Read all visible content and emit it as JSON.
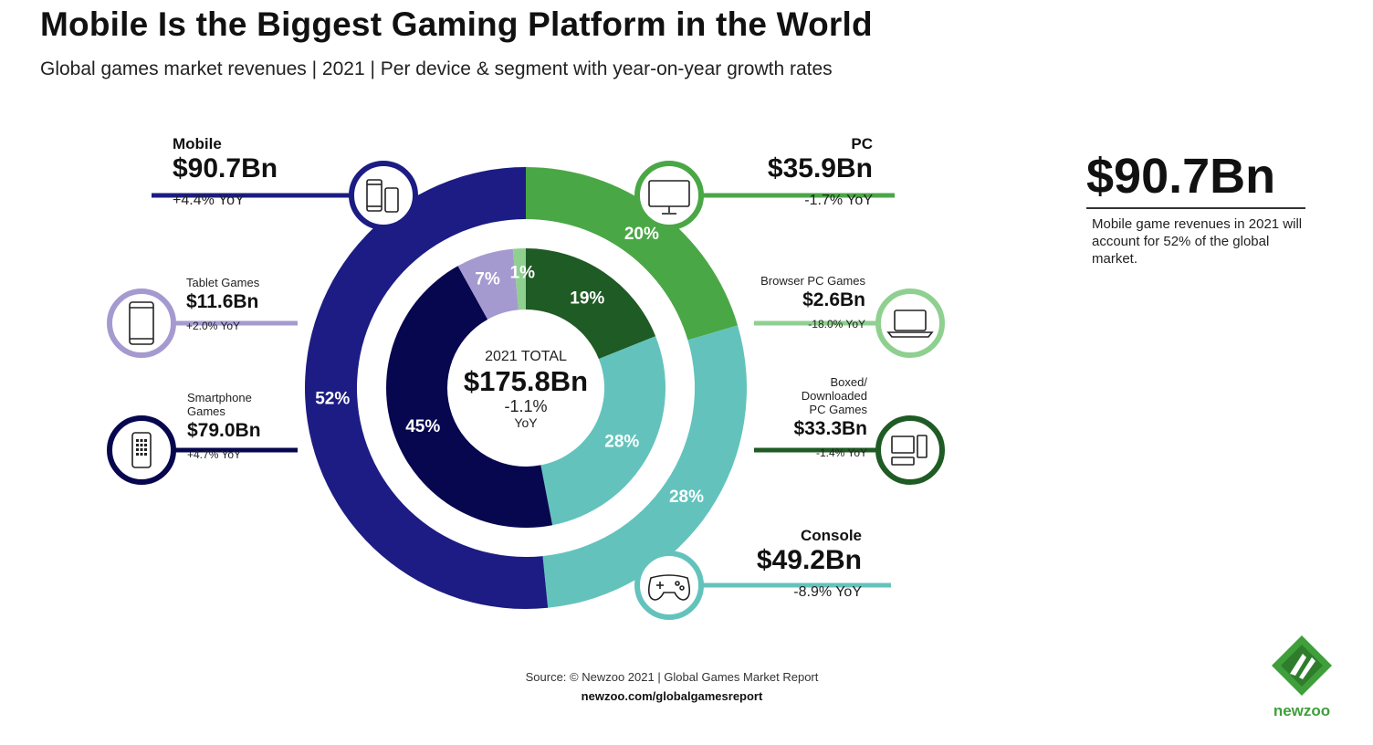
{
  "title": "Mobile Is the Biggest Gaming Platform in the World",
  "subtitle": "Global games market revenues | 2021 | Per device & segment with year-on-year growth rates",
  "colors": {
    "mobile": "#1c1c84",
    "pc": "#4aa746",
    "console": "#63c3bc",
    "tablet": "#a59ad0",
    "smartphone": "#07074f",
    "browser_pc": "#8fd090",
    "boxed_pc": "#1f5b24"
  },
  "chart_data": {
    "type": "pie",
    "center": {
      "label": "2021 TOTAL",
      "value": "$175.8Bn",
      "yoy": "-1.1%",
      "yoy_label": "YoY"
    },
    "outer_ring": [
      {
        "name": "Mobile",
        "value": 90.7,
        "value_label": "$90.7Bn",
        "yoy": "+4.4% YoY",
        "pct": 52,
        "pct_label": "52%",
        "color": "#1c1c84",
        "icon": "phones-icon"
      },
      {
        "name": "Console",
        "value": 49.2,
        "value_label": "$49.2Bn",
        "yoy": "-8.9% YoY",
        "pct": 28,
        "pct_label": "28%",
        "color": "#63c3bc",
        "icon": "gamepad-icon"
      },
      {
        "name": "PC",
        "value": 35.9,
        "value_label": "$35.9Bn",
        "yoy": "-1.7% YoY",
        "pct": 20,
        "pct_label": "20%",
        "color": "#4aa746",
        "icon": "monitor-icon"
      }
    ],
    "inner_ring": [
      {
        "name": "Smartphone Games",
        "value": 79.0,
        "value_label": "$79.0Bn",
        "yoy": "+4.7% YoY",
        "pct": 45,
        "pct_label": "45%",
        "color": "#07074f",
        "icon": "smartphone-icon"
      },
      {
        "name": "Tablet Games",
        "value": 11.6,
        "value_label": "$11.6Bn",
        "yoy": "+2.0% YoY",
        "pct": 7,
        "pct_label": "7%",
        "color": "#a59ad0",
        "icon": "tablet-icon"
      },
      {
        "name": "Browser PC Games",
        "value": 2.6,
        "value_label": "$2.6Bn",
        "yoy": "-18.0% YoY",
        "pct": 1,
        "pct_label": "1%",
        "color": "#8fd090",
        "icon": "laptop-icon"
      },
      {
        "name": "Boxed/ Downloaded PC Games",
        "value": 33.3,
        "value_label": "$33.3Bn",
        "yoy": "-1.4% YoY",
        "pct": 19,
        "pct_label": "19%",
        "color": "#1f5b24",
        "icon": "desktop-pc-icon"
      },
      {
        "name": "Console",
        "value": 49.2,
        "value_label": "",
        "yoy": "",
        "pct": 28,
        "pct_label": "28%",
        "color": "#63c3bc",
        "icon": ""
      }
    ]
  },
  "callouts": {
    "mobile": {
      "name": "Mobile",
      "value": "$90.7Bn",
      "yoy": "+4.4% YoY"
    },
    "tablet": {
      "name": "Tablet Games",
      "value": "$11.6Bn",
      "yoy": "+2.0% YoY"
    },
    "smartphone": {
      "name_line1": "Smartphone",
      "name_line2": "Games",
      "value": "$79.0Bn",
      "yoy": "+4.7% YoY"
    },
    "pc": {
      "name": "PC",
      "value": "$35.9Bn",
      "yoy": "-1.7% YoY"
    },
    "browser": {
      "name": "Browser PC Games",
      "value": "$2.6Bn",
      "yoy": "-18.0% YoY"
    },
    "boxed": {
      "name_line1": "Boxed/",
      "name_line2": "Downloaded",
      "name_line3": "PC Games",
      "value": "$33.3Bn",
      "yoy": "-1.4% YoY"
    },
    "console": {
      "name": "Console",
      "value": "$49.2Bn",
      "yoy": "-8.9% YoY"
    }
  },
  "highlight": {
    "value": "$90.7Bn",
    "description": "Mobile game revenues in 2021 will account for 52% of the global market."
  },
  "source": {
    "text": "Source: © Newzoo 2021 | Global Games Market Report",
    "url": "newzoo.com/globalgamesreport"
  },
  "logo": {
    "text": "newzoo"
  }
}
